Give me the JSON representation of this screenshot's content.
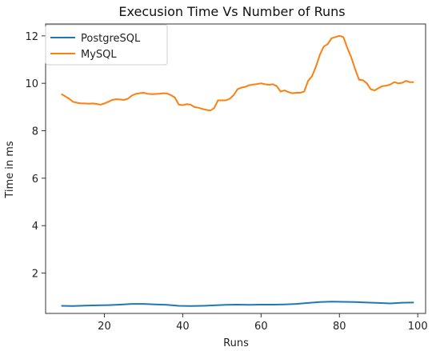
{
  "chart_data": {
    "type": "line",
    "title": "Execusion Time Vs Number of Runs",
    "xlabel": "Runs",
    "ylabel": "Time in ms",
    "xlim": [
      5,
      102
    ],
    "ylim": [
      0.3,
      12.5
    ],
    "xticks": [
      20,
      40,
      60,
      80,
      100
    ],
    "yticks": [
      2,
      4,
      6,
      8,
      10,
      12
    ],
    "grid": false,
    "legend_position": "top-left",
    "series": [
      {
        "name": "PostgreSQL",
        "color": "#1f77b4",
        "x": [
          9,
          12,
          15,
          18,
          21,
          24,
          27,
          30,
          33,
          36,
          39,
          42,
          45,
          48,
          51,
          54,
          57,
          60,
          63,
          66,
          69,
          72,
          75,
          78,
          81,
          84,
          87,
          90,
          93,
          96,
          99
        ],
        "y": [
          0.62,
          0.61,
          0.63,
          0.64,
          0.65,
          0.67,
          0.7,
          0.7,
          0.68,
          0.66,
          0.62,
          0.61,
          0.62,
          0.64,
          0.66,
          0.67,
          0.66,
          0.67,
          0.67,
          0.68,
          0.7,
          0.74,
          0.78,
          0.8,
          0.79,
          0.78,
          0.76,
          0.74,
          0.72,
          0.75,
          0.76
        ]
      },
      {
        "name": "MySQL",
        "color": "#ff7f0e",
        "x": [
          9,
          10,
          11,
          12,
          13,
          14,
          15,
          16,
          17,
          18,
          19,
          20,
          21,
          22,
          23,
          24,
          25,
          26,
          27,
          28,
          29,
          30,
          31,
          32,
          33,
          34,
          35,
          36,
          37,
          38,
          39,
          40,
          41,
          42,
          43,
          44,
          45,
          46,
          47,
          48,
          49,
          50,
          51,
          52,
          53,
          54,
          55,
          56,
          57,
          58,
          59,
          60,
          61,
          62,
          63,
          64,
          65,
          66,
          67,
          68,
          69,
          70,
          71,
          72,
          73,
          74,
          75,
          76,
          77,
          78,
          79,
          80,
          81,
          82,
          83,
          84,
          85,
          86,
          87,
          88,
          89,
          90,
          91,
          92,
          93,
          94,
          95,
          96,
          97,
          98,
          99
        ],
        "y": [
          9.55,
          9.45,
          9.35,
          9.22,
          9.18,
          9.15,
          9.15,
          9.14,
          9.15,
          9.13,
          9.1,
          9.15,
          9.22,
          9.3,
          9.33,
          9.32,
          9.3,
          9.35,
          9.48,
          9.55,
          9.58,
          9.6,
          9.56,
          9.54,
          9.55,
          9.56,
          9.58,
          9.57,
          9.5,
          9.4,
          9.1,
          9.08,
          9.12,
          9.1,
          9.0,
          8.97,
          8.92,
          8.88,
          8.85,
          8.95,
          9.28,
          9.28,
          9.28,
          9.35,
          9.5,
          9.75,
          9.82,
          9.85,
          9.92,
          9.95,
          9.97,
          10.0,
          9.96,
          9.94,
          9.96,
          9.88,
          9.65,
          9.7,
          9.63,
          9.58,
          9.6,
          9.6,
          9.65,
          10.1,
          10.3,
          10.7,
          11.2,
          11.55,
          11.65,
          11.9,
          11.95,
          12.0,
          11.95,
          11.5,
          11.1,
          10.6,
          10.15,
          10.13,
          10.0,
          9.75,
          9.7,
          9.8,
          9.88,
          9.9,
          9.95,
          10.05,
          10.0,
          10.02,
          10.1,
          10.05,
          10.05
        ]
      }
    ]
  }
}
